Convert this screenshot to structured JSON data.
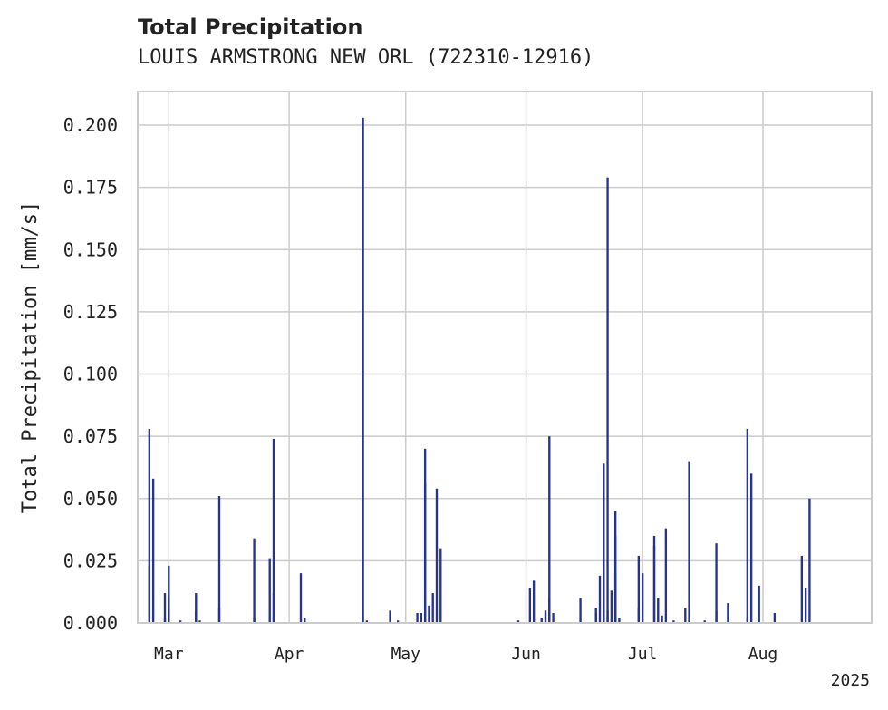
{
  "chart_data": {
    "type": "bar",
    "title": "Total Precipitation",
    "subtitle": "LOUIS ARMSTRONG NEW ORL (722310-12916)",
    "xlabel": "",
    "ylabel": "Total Precipitation [mm/s]",
    "xlim": [
      "2025-02-21",
      "2025-08-29"
    ],
    "ylim": [
      0,
      0.2135
    ],
    "y_ticks": [
      "0.000",
      "0.025",
      "0.050",
      "0.075",
      "0.100",
      "0.125",
      "0.150",
      "0.175",
      "0.200"
    ],
    "x_ticks": [
      {
        "date": "2025-03-01",
        "label": "Mar"
      },
      {
        "date": "2025-04-01",
        "label": "Apr"
      },
      {
        "date": "2025-05-01",
        "label": "May"
      },
      {
        "date": "2025-06-01",
        "label": "Jun"
      },
      {
        "date": "2025-07-01",
        "label": "Jul"
      },
      {
        "date": "2025-08-01",
        "label": "Aug"
      }
    ],
    "x_offset_label": "2025",
    "grid": true,
    "color": "#26348f",
    "series": [
      {
        "x": [
          "2025-02-24",
          "2025-02-24",
          "2025-02-25",
          "2025-02-28",
          "2025-02-28",
          "2025-03-01",
          "2025-03-01",
          "2025-03-01",
          "2025-03-04",
          "2025-03-08",
          "2025-03-08",
          "2025-03-09",
          "2025-03-14",
          "2025-03-14",
          "2025-03-23",
          "2025-03-23",
          "2025-03-27",
          "2025-03-28",
          "2025-03-28",
          "2025-04-04",
          "2025-04-05",
          "2025-04-05",
          "2025-04-20",
          "2025-04-21",
          "2025-04-27",
          "2025-04-29",
          "2025-05-04",
          "2025-05-05",
          "2025-05-06",
          "2025-05-06",
          "2025-05-07",
          "2025-05-08",
          "2025-05-09",
          "2025-05-10",
          "2025-05-30",
          "2025-06-02",
          "2025-06-03",
          "2025-06-05",
          "2025-06-06",
          "2025-06-07",
          "2025-06-07",
          "2025-06-08",
          "2025-06-15",
          "2025-06-19",
          "2025-06-19",
          "2025-06-20",
          "2025-06-21",
          "2025-06-21",
          "2025-06-22",
          "2025-06-22",
          "2025-06-23",
          "2025-06-24",
          "2025-06-24",
          "2025-06-24",
          "2025-06-25",
          "2025-06-30",
          "2025-06-30",
          "2025-07-01",
          "2025-07-04",
          "2025-07-04",
          "2025-07-05",
          "2025-07-06",
          "2025-07-07",
          "2025-07-09",
          "2025-07-12",
          "2025-07-13",
          "2025-07-13",
          "2025-07-17",
          "2025-07-20",
          "2025-07-20",
          "2025-07-23",
          "2025-07-28",
          "2025-07-28",
          "2025-07-29",
          "2025-07-31",
          "2025-08-04",
          "2025-08-11",
          "2025-08-12",
          "2025-08-13"
        ],
        "y": [
          0.023,
          0.078,
          0.058,
          0.002,
          0.012,
          0.023,
          0.01,
          0.006,
          0.001,
          0.005,
          0.012,
          0.001,
          0.051,
          0.006,
          0.034,
          0.002,
          0.026,
          0.012,
          0.074,
          0.02,
          0.002,
          0.001,
          0.203,
          0.001,
          0.005,
          0.001,
          0.004,
          0.004,
          0.07,
          0.056,
          0.007,
          0.012,
          0.054,
          0.03,
          0.001,
          0.014,
          0.017,
          0.002,
          0.005,
          0.075,
          0.01,
          0.004,
          0.01,
          0.006,
          0.004,
          0.019,
          0.064,
          0.005,
          0.179,
          0.005,
          0.013,
          0.02,
          0.035,
          0.045,
          0.002,
          0.006,
          0.027,
          0.02,
          0.031,
          0.035,
          0.01,
          0.003,
          0.038,
          0.001,
          0.006,
          0.065,
          0.001,
          0.001,
          0.032,
          0.005,
          0.008,
          0.002,
          0.078,
          0.06,
          0.015,
          0.004,
          0.027,
          0.014,
          0.05
        ]
      }
    ]
  }
}
